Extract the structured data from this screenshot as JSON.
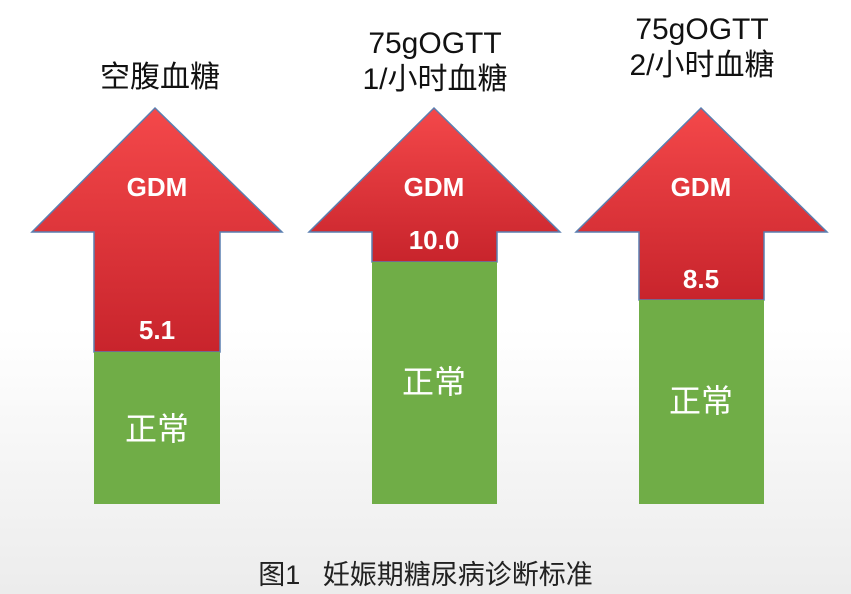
{
  "columns": [
    {
      "header_lines": [
        "空腹血糖"
      ],
      "gdm_label": "GDM",
      "threshold": "5.1",
      "normal_label": "正常"
    },
    {
      "header_lines": [
        "75gOGTT",
        "1/小时血糖"
      ],
      "gdm_label": "GDM",
      "threshold": "10.0",
      "normal_label": "正常"
    },
    {
      "header_lines": [
        "75gOGTT",
        "2/小时血糖"
      ],
      "gdm_label": "GDM",
      "threshold": "8.5",
      "normal_label": "正常"
    }
  ],
  "caption": "图1   妊娠期糖尿病诊断标准",
  "colors": {
    "arrow_red": "#f4484a",
    "arrow_red_dark": "#c8242c",
    "normal_green": "#70ad47",
    "outline": "#5a7fb0"
  }
}
